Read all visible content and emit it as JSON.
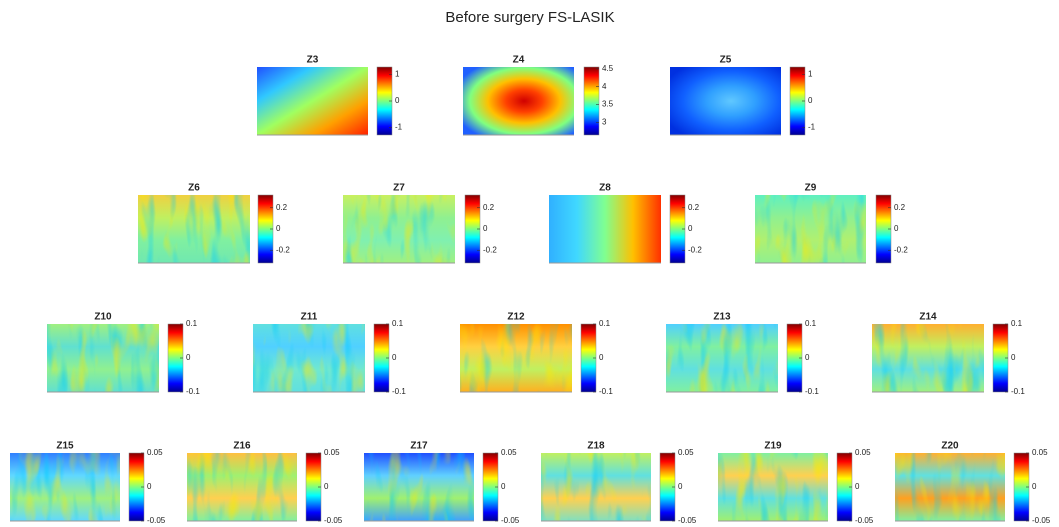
{
  "title": "Before surgery FS-LASIK",
  "chart_data": [
    {
      "type": "heatmap",
      "title": "Z3",
      "clim": [
        -1.28,
        1.28
      ],
      "cticks": [
        -1,
        0,
        1
      ]
    },
    {
      "type": "heatmap",
      "title": "Z4",
      "clim": [
        2.65,
        4.55
      ],
      "cticks": [
        3,
        3.5,
        4,
        4.5
      ]
    },
    {
      "type": "heatmap",
      "title": "Z5",
      "clim": [
        -1.28,
        1.28
      ],
      "cticks": [
        -1,
        0,
        1
      ]
    },
    {
      "type": "heatmap",
      "title": "Z6",
      "clim": [
        -0.32,
        0.32
      ],
      "cticks": [
        -0.2,
        0,
        0.2
      ]
    },
    {
      "type": "heatmap",
      "title": "Z7",
      "clim": [
        -0.32,
        0.32
      ],
      "cticks": [
        -0.2,
        0,
        0.2
      ]
    },
    {
      "type": "heatmap",
      "title": "Z8",
      "clim": [
        -0.32,
        0.32
      ],
      "cticks": [
        -0.2,
        0,
        0.2
      ]
    },
    {
      "type": "heatmap",
      "title": "Z9",
      "clim": [
        -0.32,
        0.32
      ],
      "cticks": [
        -0.2,
        0,
        0.2
      ]
    },
    {
      "type": "heatmap",
      "title": "Z10",
      "clim": [
        -0.1,
        0.1
      ],
      "cticks": [
        -0.1,
        0,
        0.1
      ]
    },
    {
      "type": "heatmap",
      "title": "Z11",
      "clim": [
        -0.1,
        0.1
      ],
      "cticks": [
        -0.1,
        0,
        0.1
      ]
    },
    {
      "type": "heatmap",
      "title": "Z12",
      "clim": [
        -0.1,
        0.1
      ],
      "cticks": [
        -0.1,
        0,
        0.1
      ]
    },
    {
      "type": "heatmap",
      "title": "Z13",
      "clim": [
        -0.1,
        0.1
      ],
      "cticks": [
        -0.1,
        0,
        0.1
      ]
    },
    {
      "type": "heatmap",
      "title": "Z14",
      "clim": [
        -0.1,
        0.1
      ],
      "cticks": [
        -0.1,
        0,
        0.1
      ]
    },
    {
      "type": "heatmap",
      "title": "Z15",
      "clim": [
        -0.05,
        0.05
      ],
      "cticks": [
        -0.05,
        0,
        0.05
      ]
    },
    {
      "type": "heatmap",
      "title": "Z16",
      "clim": [
        -0.05,
        0.05
      ],
      "cticks": [
        -0.05,
        0,
        0.05
      ]
    },
    {
      "type": "heatmap",
      "title": "Z17",
      "clim": [
        -0.05,
        0.05
      ],
      "cticks": [
        -0.05,
        0,
        0.05
      ]
    },
    {
      "type": "heatmap",
      "title": "Z18",
      "clim": [
        -0.05,
        0.05
      ],
      "cticks": [
        -0.05,
        0,
        0.05
      ]
    },
    {
      "type": "heatmap",
      "title": "Z19",
      "clim": [
        -0.05,
        0.05
      ],
      "cticks": [
        -0.05,
        0,
        0.05
      ]
    },
    {
      "type": "heatmap",
      "title": "Z20",
      "clim": [
        -0.05,
        0.05
      ],
      "cticks": [
        -0.05,
        0,
        0.05
      ]
    }
  ]
}
